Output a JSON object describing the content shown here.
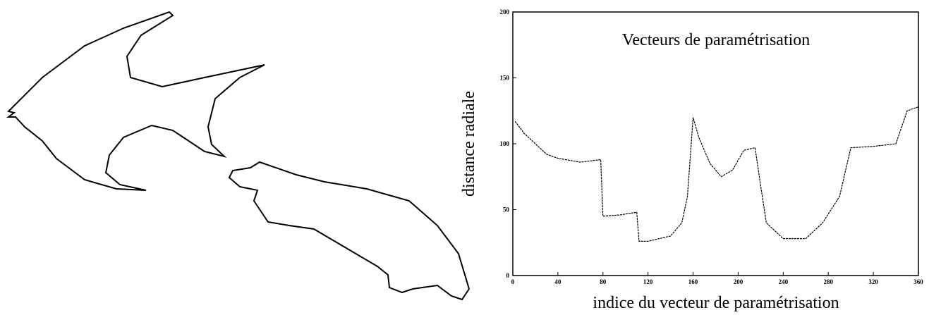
{
  "chart_data": {
    "type": "line",
    "title": "Vecteurs de paramétrisation",
    "x_label": "indice du vecteur de paramétrisation",
    "y_label": "distance radiale",
    "color": "#000000",
    "x": [
      2,
      10,
      20,
      30,
      40,
      60,
      78,
      80,
      95,
      110,
      112,
      120,
      140,
      150,
      155,
      160,
      165,
      175,
      185,
      195,
      205,
      215,
      220,
      225,
      240,
      260,
      275,
      290,
      300,
      320,
      340,
      350,
      360
    ],
    "values": [
      117,
      108,
      100,
      92,
      89,
      86,
      88,
      45,
      46,
      48,
      26,
      26,
      30,
      40,
      60,
      120,
      105,
      85,
      75,
      80,
      95,
      97,
      68,
      40,
      28,
      28,
      40,
      60,
      97,
      98,
      100,
      125,
      128
    ],
    "xlim": [
      0,
      360
    ],
    "ylim": [
      0,
      200
    ],
    "xticks": [
      0,
      40,
      80,
      120,
      160,
      200,
      240,
      280,
      320,
      360
    ],
    "yticks": [
      0,
      50,
      100,
      150,
      200
    ]
  }
}
